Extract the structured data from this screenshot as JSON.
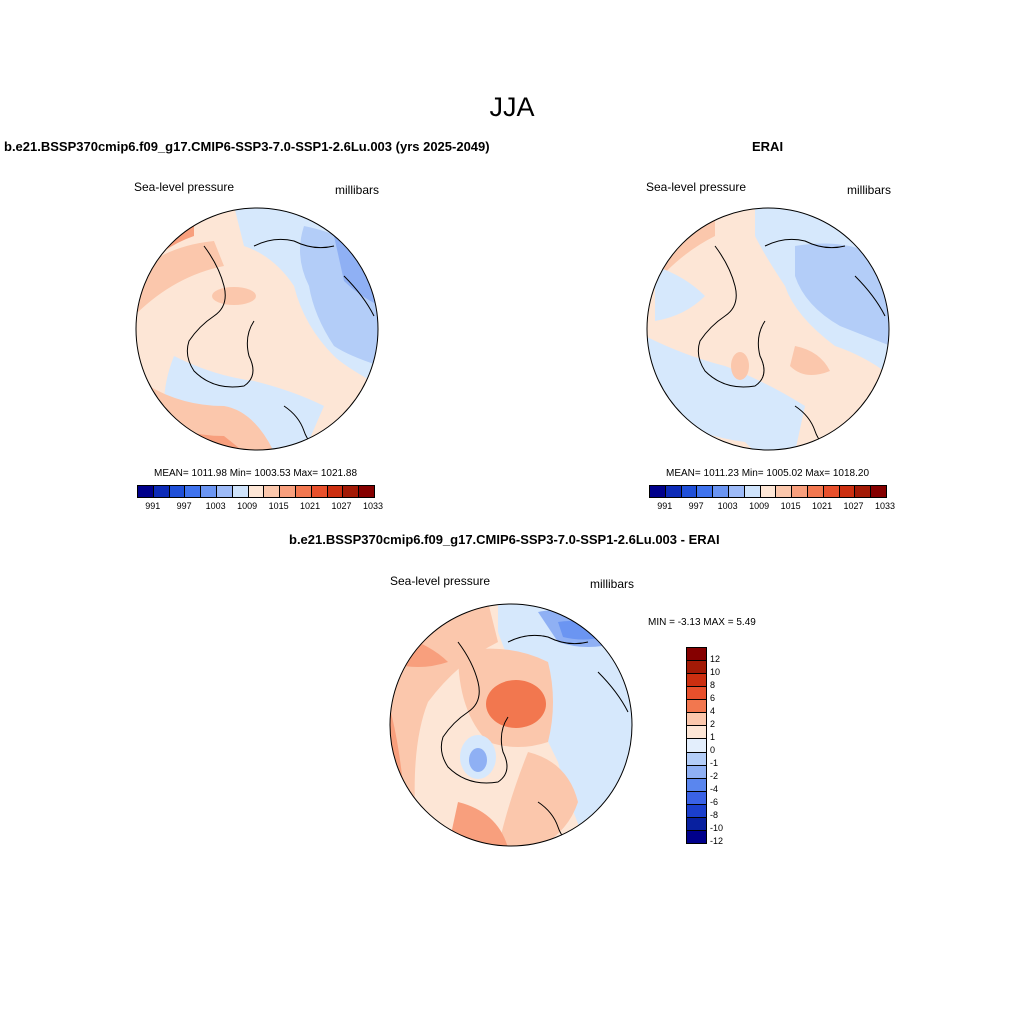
{
  "title": "JJA",
  "panels": {
    "model": {
      "title": "b.e21.BSSP370cmip6.f09_g17.CMIP6-SSP3-7.0-SSP1-2.6Lu.003 (yrs 2025-2049)",
      "variable": "Sea-level pressure",
      "units": "millibars",
      "stats": "MEAN= 1011.98  Min= 1003.53  Max= 1021.88"
    },
    "obs": {
      "title": "ERAI",
      "variable": "Sea-level pressure",
      "units": "millibars",
      "stats": "MEAN= 1011.23  Min= 1005.02  Max= 1018.20"
    },
    "diff": {
      "title": "b.e21.BSSP370cmip6.f09_g17.CMIP6-SSP3-7.0-SSP1-2.6Lu.003 - ERAI",
      "variable": "Sea-level pressure",
      "units": "millibars",
      "stats": "MIN =  -3.13 MAX =   5.49"
    }
  },
  "colorbar_abs": {
    "colors": [
      "#00008b",
      "#0d2bb8",
      "#1f4fd8",
      "#3f73ee",
      "#6b95f2",
      "#9dbaf7",
      "#cfe3fb",
      "#fde6d6",
      "#fbc7ac",
      "#f89f7d",
      "#f2774f",
      "#e8502c",
      "#cc2f10",
      "#a31a06",
      "#850000"
    ],
    "tick_labels": [
      "991",
      "997",
      "1003",
      "1009",
      "1015",
      "1021",
      "1027",
      "1033"
    ]
  },
  "colorbar_diff": {
    "colors": [
      "#850000",
      "#a31a06",
      "#cc2f10",
      "#e8502c",
      "#f2774f",
      "#fbc7ac",
      "#fde6d6",
      "#e3eefc",
      "#b3cdf8",
      "#8fb0f4",
      "#5a86ee",
      "#3a62e6",
      "#1b3fcd",
      "#08209f",
      "#00008b"
    ],
    "tick_labels": [
      "12",
      "10",
      "8",
      "6",
      "4",
      "2",
      "1",
      "0",
      "-1",
      "-2",
      "-4",
      "-6",
      "-8",
      "-10",
      "-12"
    ]
  },
  "palette": {
    "warm1": "#fde6d6",
    "warm2": "#fbc7ac",
    "warm3": "#f89f7d",
    "warm4": "#f2774f",
    "cool1": "#d6e8fc",
    "cool2": "#b3cdf8",
    "cool3": "#8fb0f4",
    "cool4": "#6b95f2",
    "coast": "#000000"
  }
}
